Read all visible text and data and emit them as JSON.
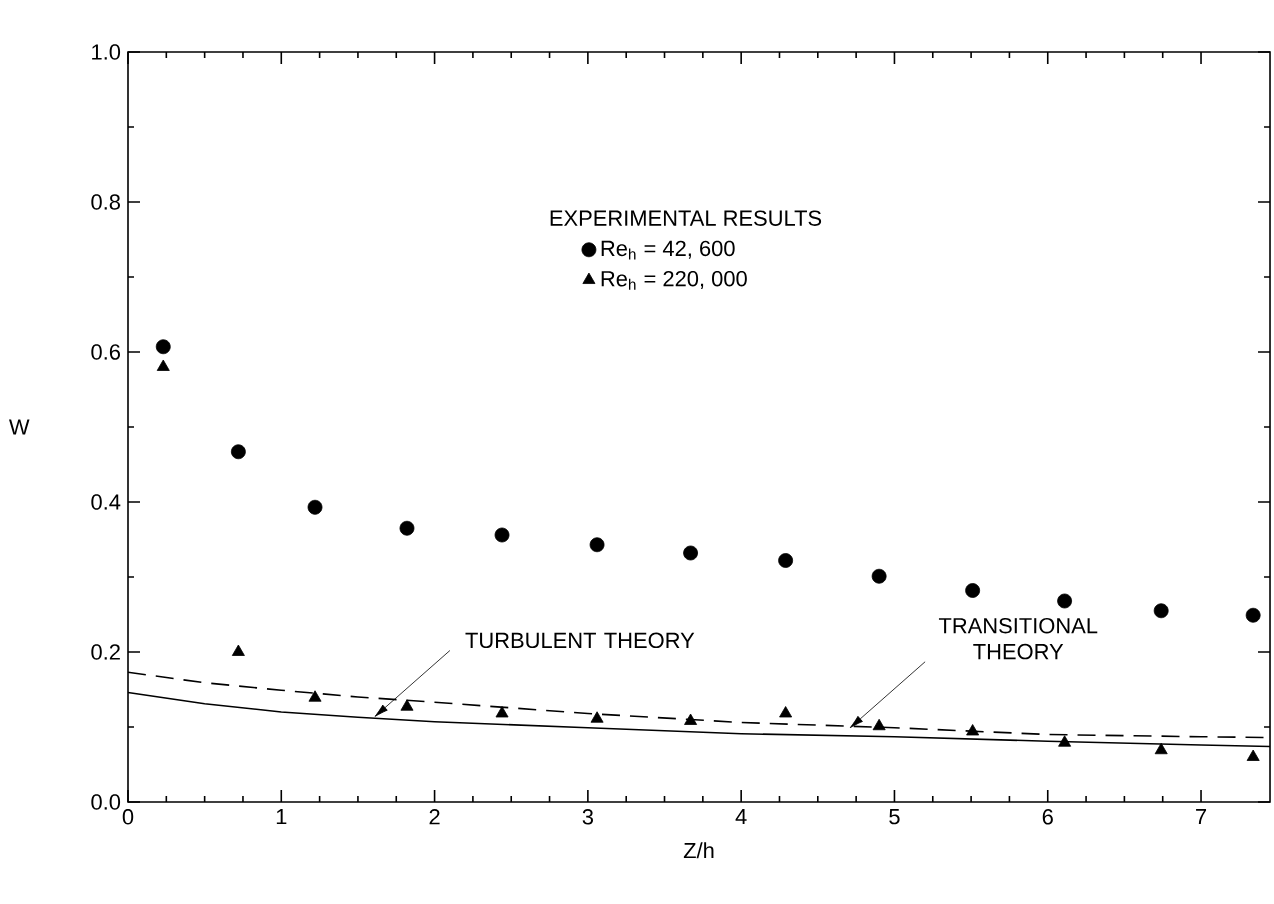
{
  "chart_data": {
    "type": "scatter",
    "xlabel": "Z/h",
    "ylabel": "W",
    "legend_title": "EXPERIMENTAL RESULTS",
    "legend": "top",
    "grid": false,
    "xlim": [
      0,
      7.45
    ],
    "ylim": [
      0,
      1.0
    ],
    "xticks": [
      0,
      1,
      2,
      3,
      4,
      5,
      6,
      7
    ],
    "yticks": [
      {
        "value": 0,
        "label": "0.0"
      },
      {
        "value": 0.2,
        "label": "0.2"
      },
      {
        "value": 0.4,
        "label": "0.4"
      },
      {
        "value": 0.6,
        "label": "0.6"
      },
      {
        "value": 0.8,
        "label": "0.8"
      },
      {
        "value": 1.0,
        "label": "1.0"
      }
    ],
    "series": [
      {
        "name": "Re$_{h}$ = 42, 600",
        "marker": "circle",
        "color": "#000000",
        "x": [
          0.23,
          0.72,
          1.22,
          1.82,
          2.44,
          3.06,
          3.67,
          4.29,
          4.9,
          5.51,
          6.11,
          6.74,
          7.34
        ],
        "values": [
          0.607,
          0.467,
          0.393,
          0.365,
          0.356,
          0.343,
          0.332,
          0.322,
          0.301,
          0.282,
          0.268,
          0.255,
          0.249
        ]
      },
      {
        "name": "Re$_{h}$ = 220, 000",
        "marker": "triangle",
        "color": "#000000",
        "x": [
          0.23,
          0.72,
          1.22,
          1.82,
          2.44,
          3.06,
          3.67,
          4.29,
          4.9,
          5.51,
          6.11,
          6.74,
          7.34
        ],
        "values": [
          0.58,
          0.2,
          0.139,
          0.127,
          0.118,
          0.111,
          0.108,
          0.118,
          0.101,
          0.094,
          0.079,
          0.069,
          0.06
        ]
      },
      {
        "type": "line",
        "line_style": "solid",
        "color": "#000000",
        "x": [
          0,
          0.5,
          1,
          1.5,
          2,
          3,
          4,
          5,
          6,
          7,
          7.45
        ],
        "values": [
          0.146,
          0.131,
          0.12,
          0.113,
          0.107,
          0.099,
          0.091,
          0.087,
          0.081,
          0.076,
          0.074
        ]
      },
      {
        "type": "line",
        "line_style": "dashed",
        "color": "#000000",
        "x": [
          0,
          0.5,
          1,
          1.5,
          2,
          3,
          4,
          5,
          6,
          7,
          7.45
        ],
        "values": [
          0.173,
          0.159,
          0.149,
          0.14,
          0.133,
          0.118,
          0.106,
          0.099,
          0.09,
          0.087,
          0.086
        ]
      }
    ],
    "annotations": [
      {
        "text": "TURBULENT THEORY",
        "x": 1.6,
        "y": 0.112
      },
      {
        "text": "TRANSITIONAL THEORY",
        "x": 4.7,
        "y": 0.097
      }
    ]
  }
}
